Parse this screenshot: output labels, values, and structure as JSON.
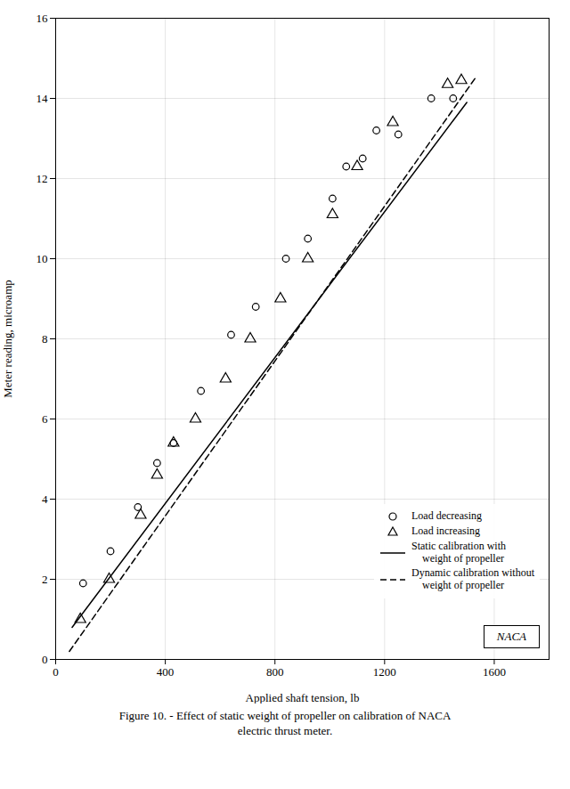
{
  "chart_data": {
    "type": "scatter",
    "title": "Figure 10. - Effect of static weight of propeller on calibration of NACA\nelectric thrust meter.",
    "xlabel": "Applied shaft tension, lb",
    "ylabel": "Meter reading, microamp",
    "xlim": [
      0,
      1800
    ],
    "ylim": [
      0,
      16
    ],
    "xticks": [
      0,
      400,
      800,
      1200,
      1600
    ],
    "yticks": [
      0,
      2,
      4,
      6,
      8,
      10,
      12,
      14,
      16
    ],
    "grid": true,
    "legend": "right",
    "series": [
      {
        "name": "Load decreasing",
        "type": "scatter",
        "marker": "circle",
        "color": "black",
        "x": [
          100,
          200,
          300,
          370,
          430,
          530,
          640,
          730,
          840,
          920,
          1010,
          1060,
          1120,
          1170,
          1250,
          1370,
          1450
        ],
        "values": [
          1.9,
          2.7,
          3.8,
          4.9,
          5.4,
          6.7,
          8.1,
          8.8,
          10.0,
          10.5,
          11.5,
          12.3,
          12.5,
          13.2,
          13.1,
          14.0,
          14.0
        ]
      },
      {
        "name": "Load increasing",
        "type": "scatter",
        "marker": "triangle",
        "color": "black",
        "x": [
          90,
          195,
          310,
          370,
          430,
          510,
          620,
          710,
          820,
          920,
          1010,
          1100,
          1230,
          1430,
          1480
        ],
        "values": [
          1.0,
          2.0,
          3.6,
          4.6,
          5.4,
          6.0,
          7.0,
          8.0,
          9.0,
          10.0,
          11.1,
          12.3,
          13.4,
          14.35,
          14.45
        ]
      },
      {
        "name": "Static calibration with\n    weight of propeller",
        "type": "line",
        "line_style": "solid",
        "color": "black",
        "x": [
          60,
          1500
        ],
        "values": [
          0.8,
          13.9
        ]
      },
      {
        "name": "Dynamic calibration without\n    weight of propeller",
        "type": "line",
        "line_style": "dashed",
        "color": "black",
        "x": [
          50,
          1530
        ],
        "values": [
          0.2,
          14.5
        ]
      }
    ],
    "annotations": [
      {
        "text": "NACA"
      }
    ]
  }
}
